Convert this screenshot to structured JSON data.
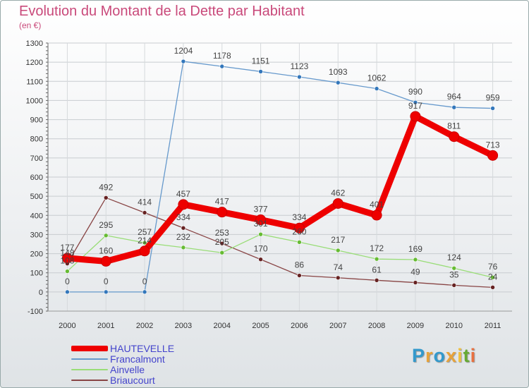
{
  "header": {
    "title": "Evolution du Montant de la Dette par Habitant",
    "subtitle": "(en €)"
  },
  "logo": {
    "text": "Proxiti",
    "colors": [
      "#3399cc",
      "#e8a33a",
      "#3399cc",
      "#e8a33a",
      "#f0c040",
      "#66aa33",
      "#e87040"
    ]
  },
  "chart_data": {
    "type": "line",
    "x": [
      "2000",
      "2001",
      "2002",
      "2003",
      "2004",
      "2005",
      "2006",
      "2007",
      "2008",
      "2009",
      "2010",
      "2011"
    ],
    "ylim": [
      -100,
      1300
    ],
    "yticks": [
      -100,
      0,
      100,
      200,
      300,
      400,
      500,
      600,
      700,
      800,
      900,
      1000,
      1100,
      1200,
      1300
    ],
    "grid": true,
    "legend_position": "bottom-left",
    "series": [
      {
        "name": "HAUTEVELLE",
        "color": "#ee0000",
        "marker": "#ee0000",
        "values": [
          177,
          160,
          214,
          457,
          417,
          377,
          334,
          462,
          401,
          917,
          811,
          713
        ],
        "labels": [
          "177",
          "160",
          "214",
          "457",
          "417",
          "377",
          "334",
          "462",
          "401",
          "917",
          "811",
          "713"
        ]
      },
      {
        "name": "Francalmont",
        "color": "#6699cc",
        "marker": "#3377bb",
        "values": [
          0,
          0,
          0,
          1204,
          1178,
          1151,
          1123,
          1093,
          1062,
          990,
          964,
          959
        ],
        "labels": [
          "0",
          "0",
          "0",
          "1204",
          "1178",
          "1151",
          "1123",
          "1093",
          "1062",
          "990",
          "964",
          "959"
        ]
      },
      {
        "name": "Ainvelle",
        "color": "#99dd77",
        "marker": "#66bb33",
        "values": [
          108,
          295,
          257,
          232,
          205,
          301,
          260,
          217,
          172,
          169,
          124,
          76
        ],
        "labels": [
          "108",
          "295",
          "257",
          "232",
          "205",
          "301",
          "260",
          "217",
          "172",
          "169",
          "124",
          "76"
        ]
      },
      {
        "name": "Briaucourt",
        "color": "#884444",
        "marker": "#662222",
        "values": [
          148,
          492,
          414,
          334,
          253,
          170,
          86,
          74,
          61,
          49,
          35,
          24
        ],
        "labels": [
          "148",
          "492",
          "414",
          "334",
          "253",
          "170",
          "86",
          "74",
          "61",
          "49",
          "35",
          "24"
        ]
      }
    ]
  }
}
